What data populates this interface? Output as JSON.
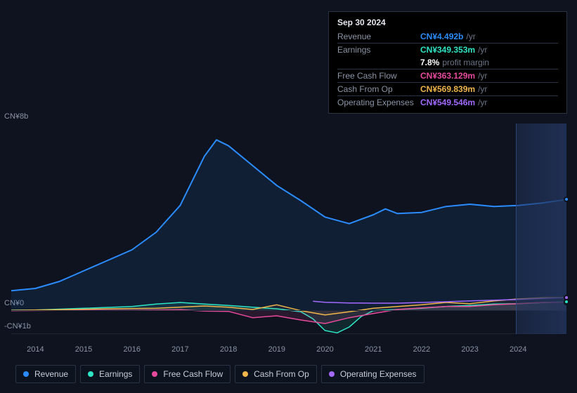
{
  "chart": {
    "type": "area-line",
    "background_color": "#0f131f",
    "grid_color": "#1e2636",
    "axis_label_color": "#8a94a6",
    "axis_fontsize": 11,
    "x": {
      "min": 2013.5,
      "max": 2025.0,
      "ticks": [
        2014,
        2015,
        2016,
        2017,
        2018,
        2019,
        2020,
        2021,
        2022,
        2023,
        2024
      ],
      "tick_labels": [
        "2014",
        "2015",
        "2016",
        "2017",
        "2018",
        "2019",
        "2020",
        "2021",
        "2022",
        "2023",
        "2024"
      ]
    },
    "y": {
      "min": -1,
      "max": 8,
      "ticks": [
        8,
        0,
        -1
      ],
      "tick_labels": [
        "CN¥8b",
        "CN¥0",
        "-CN¥1b"
      ]
    },
    "forecast_start": 2024.75,
    "series": [
      {
        "key": "revenue",
        "label": "Revenue",
        "color": "#2a8cff",
        "fill_opacity": 0.1,
        "line_width": 2,
        "values_b": [
          [
            2013.5,
            0.85
          ],
          [
            2014,
            0.95
          ],
          [
            2014.5,
            1.25
          ],
          [
            2015,
            1.7
          ],
          [
            2015.5,
            2.15
          ],
          [
            2016,
            2.6
          ],
          [
            2016.5,
            3.35
          ],
          [
            2017,
            4.5
          ],
          [
            2017.5,
            6.6
          ],
          [
            2017.75,
            7.3
          ],
          [
            2018,
            7.05
          ],
          [
            2018.5,
            6.2
          ],
          [
            2019,
            5.35
          ],
          [
            2019.5,
            4.7
          ],
          [
            2020,
            4.0
          ],
          [
            2020.5,
            3.72
          ],
          [
            2021,
            4.1
          ],
          [
            2021.25,
            4.35
          ],
          [
            2021.5,
            4.15
          ],
          [
            2022,
            4.2
          ],
          [
            2022.5,
            4.45
          ],
          [
            2023,
            4.55
          ],
          [
            2023.5,
            4.45
          ],
          [
            2024,
            4.5
          ],
          [
            2024.5,
            4.6
          ],
          [
            2025.0,
            4.75
          ]
        ]
      },
      {
        "key": "earnings",
        "label": "Earnings",
        "color": "#2ee6c5",
        "fill_opacity": 0.1,
        "line_width": 1.5,
        "values_b": [
          [
            2013.5,
            0.02
          ],
          [
            2014,
            0.03
          ],
          [
            2015,
            0.1
          ],
          [
            2016,
            0.18
          ],
          [
            2016.5,
            0.28
          ],
          [
            2017,
            0.35
          ],
          [
            2017.5,
            0.28
          ],
          [
            2018,
            0.22
          ],
          [
            2018.5,
            0.15
          ],
          [
            2019,
            0.08
          ],
          [
            2019.5,
            -0.05
          ],
          [
            2019.75,
            -0.35
          ],
          [
            2020,
            -0.85
          ],
          [
            2020.25,
            -0.95
          ],
          [
            2020.5,
            -0.7
          ],
          [
            2020.75,
            -0.25
          ],
          [
            2021,
            0.0
          ],
          [
            2021.5,
            0.05
          ],
          [
            2022,
            0.1
          ],
          [
            2022.5,
            0.18
          ],
          [
            2023,
            0.22
          ],
          [
            2023.5,
            0.28
          ],
          [
            2024,
            0.3
          ],
          [
            2024.5,
            0.34
          ],
          [
            2025.0,
            0.38
          ]
        ]
      },
      {
        "key": "fcf",
        "label": "Free Cash Flow",
        "color": "#e64a9c",
        "fill_opacity": 0.12,
        "line_width": 1.5,
        "values_b": [
          [
            2013.5,
            0.0
          ],
          [
            2015,
            0.02
          ],
          [
            2016,
            0.01
          ],
          [
            2017,
            0.04
          ],
          [
            2017.5,
            -0.02
          ],
          [
            2018,
            -0.03
          ],
          [
            2018.5,
            -0.3
          ],
          [
            2019,
            -0.22
          ],
          [
            2019.5,
            -0.4
          ],
          [
            2020,
            -0.55
          ],
          [
            2020.5,
            -0.3
          ],
          [
            2021,
            -0.12
          ],
          [
            2021.5,
            0.05
          ],
          [
            2022,
            0.12
          ],
          [
            2022.5,
            0.18
          ],
          [
            2023,
            0.18
          ],
          [
            2023.5,
            0.25
          ],
          [
            2024,
            0.3
          ],
          [
            2024.5,
            0.35
          ],
          [
            2025.0,
            0.36
          ]
        ]
      },
      {
        "key": "cfo",
        "label": "Cash From Op",
        "color": "#f0b64a",
        "fill_opacity": 0.05,
        "line_width": 1.5,
        "values_b": [
          [
            2013.5,
            0.01
          ],
          [
            2014.5,
            0.04
          ],
          [
            2015.5,
            0.08
          ],
          [
            2016.5,
            0.1
          ],
          [
            2017.5,
            0.2
          ],
          [
            2018,
            0.15
          ],
          [
            2018.5,
            0.05
          ],
          [
            2019,
            0.25
          ],
          [
            2019.5,
            0.0
          ],
          [
            2020,
            -0.18
          ],
          [
            2020.5,
            -0.05
          ],
          [
            2021,
            0.1
          ],
          [
            2021.5,
            0.18
          ],
          [
            2022,
            0.25
          ],
          [
            2022.5,
            0.35
          ],
          [
            2023,
            0.3
          ],
          [
            2023.5,
            0.42
          ],
          [
            2024,
            0.5
          ],
          [
            2024.5,
            0.55
          ],
          [
            2025.0,
            0.57
          ]
        ]
      },
      {
        "key": "opex",
        "label": "Operating Expenses",
        "color": "#a269ff",
        "fill_opacity": 0.0,
        "line_width": 1.5,
        "values_b": [
          [
            2019.75,
            0.4
          ],
          [
            2020,
            0.36
          ],
          [
            2020.5,
            0.33
          ],
          [
            2021,
            0.32
          ],
          [
            2021.5,
            0.32
          ],
          [
            2022,
            0.35
          ],
          [
            2022.5,
            0.38
          ],
          [
            2023,
            0.42
          ],
          [
            2023.5,
            0.45
          ],
          [
            2024,
            0.48
          ],
          [
            2024.5,
            0.52
          ],
          [
            2025.0,
            0.55
          ]
        ]
      }
    ]
  },
  "tooltip": {
    "date": "Sep 30 2024",
    "rows": [
      {
        "key": "revenue",
        "label": "Revenue",
        "value": "CN¥4.492b",
        "suffix": "/yr",
        "color": "#2a8cff"
      },
      {
        "key": "earnings",
        "label": "Earnings",
        "value": "CN¥349.353m",
        "suffix": "/yr",
        "color": "#2ee6c5"
      },
      {
        "key": "margin",
        "label": "",
        "pct": "7.8%",
        "pct_label": "profit margin"
      },
      {
        "key": "fcf",
        "label": "Free Cash Flow",
        "value": "CN¥363.129m",
        "suffix": "/yr",
        "color": "#e64a9c"
      },
      {
        "key": "cfo",
        "label": "Cash From Op",
        "value": "CN¥569.839m",
        "suffix": "/yr",
        "color": "#f0b64a"
      },
      {
        "key": "opex",
        "label": "Operating Expenses",
        "value": "CN¥549.546m",
        "suffix": "/yr",
        "color": "#a269ff"
      }
    ]
  },
  "legend": {
    "items": [
      {
        "key": "revenue",
        "label": "Revenue",
        "color": "#2a8cff"
      },
      {
        "key": "earnings",
        "label": "Earnings",
        "color": "#2ee6c5"
      },
      {
        "key": "fcf",
        "label": "Free Cash Flow",
        "color": "#e64a9c"
      },
      {
        "key": "cfo",
        "label": "Cash From Op",
        "color": "#f0b64a"
      },
      {
        "key": "opex",
        "label": "Operating Expenses",
        "color": "#a269ff"
      }
    ]
  }
}
